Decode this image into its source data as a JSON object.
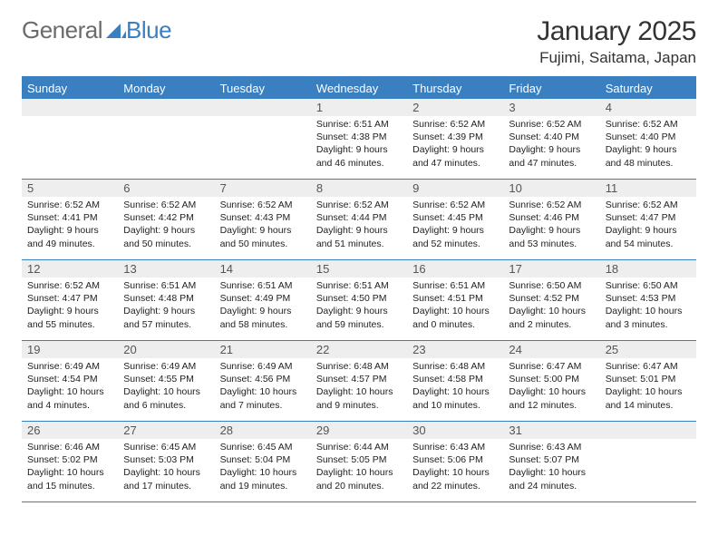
{
  "logo": {
    "text_gray": "General",
    "text_blue": "Blue"
  },
  "title": "January 2025",
  "location": "Fujimi, Saitama, Japan",
  "colors": {
    "header_bg": "#3a7fc0",
    "header_text": "#ffffff",
    "daynum_bg": "#eeeeee",
    "daynum_text": "#555555",
    "body_text": "#222222",
    "logo_gray": "#6b6b6b",
    "logo_blue": "#3a7fc0",
    "page_bg": "#ffffff"
  },
  "day_names": [
    "Sunday",
    "Monday",
    "Tuesday",
    "Wednesday",
    "Thursday",
    "Friday",
    "Saturday"
  ],
  "weeks": [
    [
      {
        "n": "",
        "sr": "",
        "ss": "",
        "dl": ""
      },
      {
        "n": "",
        "sr": "",
        "ss": "",
        "dl": ""
      },
      {
        "n": "",
        "sr": "",
        "ss": "",
        "dl": ""
      },
      {
        "n": "1",
        "sr": "Sunrise: 6:51 AM",
        "ss": "Sunset: 4:38 PM",
        "dl": "Daylight: 9 hours and 46 minutes."
      },
      {
        "n": "2",
        "sr": "Sunrise: 6:52 AM",
        "ss": "Sunset: 4:39 PM",
        "dl": "Daylight: 9 hours and 47 minutes."
      },
      {
        "n": "3",
        "sr": "Sunrise: 6:52 AM",
        "ss": "Sunset: 4:40 PM",
        "dl": "Daylight: 9 hours and 47 minutes."
      },
      {
        "n": "4",
        "sr": "Sunrise: 6:52 AM",
        "ss": "Sunset: 4:40 PM",
        "dl": "Daylight: 9 hours and 48 minutes."
      }
    ],
    [
      {
        "n": "5",
        "sr": "Sunrise: 6:52 AM",
        "ss": "Sunset: 4:41 PM",
        "dl": "Daylight: 9 hours and 49 minutes."
      },
      {
        "n": "6",
        "sr": "Sunrise: 6:52 AM",
        "ss": "Sunset: 4:42 PM",
        "dl": "Daylight: 9 hours and 50 minutes."
      },
      {
        "n": "7",
        "sr": "Sunrise: 6:52 AM",
        "ss": "Sunset: 4:43 PM",
        "dl": "Daylight: 9 hours and 50 minutes."
      },
      {
        "n": "8",
        "sr": "Sunrise: 6:52 AM",
        "ss": "Sunset: 4:44 PM",
        "dl": "Daylight: 9 hours and 51 minutes."
      },
      {
        "n": "9",
        "sr": "Sunrise: 6:52 AM",
        "ss": "Sunset: 4:45 PM",
        "dl": "Daylight: 9 hours and 52 minutes."
      },
      {
        "n": "10",
        "sr": "Sunrise: 6:52 AM",
        "ss": "Sunset: 4:46 PM",
        "dl": "Daylight: 9 hours and 53 minutes."
      },
      {
        "n": "11",
        "sr": "Sunrise: 6:52 AM",
        "ss": "Sunset: 4:47 PM",
        "dl": "Daylight: 9 hours and 54 minutes."
      }
    ],
    [
      {
        "n": "12",
        "sr": "Sunrise: 6:52 AM",
        "ss": "Sunset: 4:47 PM",
        "dl": "Daylight: 9 hours and 55 minutes."
      },
      {
        "n": "13",
        "sr": "Sunrise: 6:51 AM",
        "ss": "Sunset: 4:48 PM",
        "dl": "Daylight: 9 hours and 57 minutes."
      },
      {
        "n": "14",
        "sr": "Sunrise: 6:51 AM",
        "ss": "Sunset: 4:49 PM",
        "dl": "Daylight: 9 hours and 58 minutes."
      },
      {
        "n": "15",
        "sr": "Sunrise: 6:51 AM",
        "ss": "Sunset: 4:50 PM",
        "dl": "Daylight: 9 hours and 59 minutes."
      },
      {
        "n": "16",
        "sr": "Sunrise: 6:51 AM",
        "ss": "Sunset: 4:51 PM",
        "dl": "Daylight: 10 hours and 0 minutes."
      },
      {
        "n": "17",
        "sr": "Sunrise: 6:50 AM",
        "ss": "Sunset: 4:52 PM",
        "dl": "Daylight: 10 hours and 2 minutes."
      },
      {
        "n": "18",
        "sr": "Sunrise: 6:50 AM",
        "ss": "Sunset: 4:53 PM",
        "dl": "Daylight: 10 hours and 3 minutes."
      }
    ],
    [
      {
        "n": "19",
        "sr": "Sunrise: 6:49 AM",
        "ss": "Sunset: 4:54 PM",
        "dl": "Daylight: 10 hours and 4 minutes."
      },
      {
        "n": "20",
        "sr": "Sunrise: 6:49 AM",
        "ss": "Sunset: 4:55 PM",
        "dl": "Daylight: 10 hours and 6 minutes."
      },
      {
        "n": "21",
        "sr": "Sunrise: 6:49 AM",
        "ss": "Sunset: 4:56 PM",
        "dl": "Daylight: 10 hours and 7 minutes."
      },
      {
        "n": "22",
        "sr": "Sunrise: 6:48 AM",
        "ss": "Sunset: 4:57 PM",
        "dl": "Daylight: 10 hours and 9 minutes."
      },
      {
        "n": "23",
        "sr": "Sunrise: 6:48 AM",
        "ss": "Sunset: 4:58 PM",
        "dl": "Daylight: 10 hours and 10 minutes."
      },
      {
        "n": "24",
        "sr": "Sunrise: 6:47 AM",
        "ss": "Sunset: 5:00 PM",
        "dl": "Daylight: 10 hours and 12 minutes."
      },
      {
        "n": "25",
        "sr": "Sunrise: 6:47 AM",
        "ss": "Sunset: 5:01 PM",
        "dl": "Daylight: 10 hours and 14 minutes."
      }
    ],
    [
      {
        "n": "26",
        "sr": "Sunrise: 6:46 AM",
        "ss": "Sunset: 5:02 PM",
        "dl": "Daylight: 10 hours and 15 minutes."
      },
      {
        "n": "27",
        "sr": "Sunrise: 6:45 AM",
        "ss": "Sunset: 5:03 PM",
        "dl": "Daylight: 10 hours and 17 minutes."
      },
      {
        "n": "28",
        "sr": "Sunrise: 6:45 AM",
        "ss": "Sunset: 5:04 PM",
        "dl": "Daylight: 10 hours and 19 minutes."
      },
      {
        "n": "29",
        "sr": "Sunrise: 6:44 AM",
        "ss": "Sunset: 5:05 PM",
        "dl": "Daylight: 10 hours and 20 minutes."
      },
      {
        "n": "30",
        "sr": "Sunrise: 6:43 AM",
        "ss": "Sunset: 5:06 PM",
        "dl": "Daylight: 10 hours and 22 minutes."
      },
      {
        "n": "31",
        "sr": "Sunrise: 6:43 AM",
        "ss": "Sunset: 5:07 PM",
        "dl": "Daylight: 10 hours and 24 minutes."
      },
      {
        "n": "",
        "sr": "",
        "ss": "",
        "dl": ""
      }
    ]
  ]
}
